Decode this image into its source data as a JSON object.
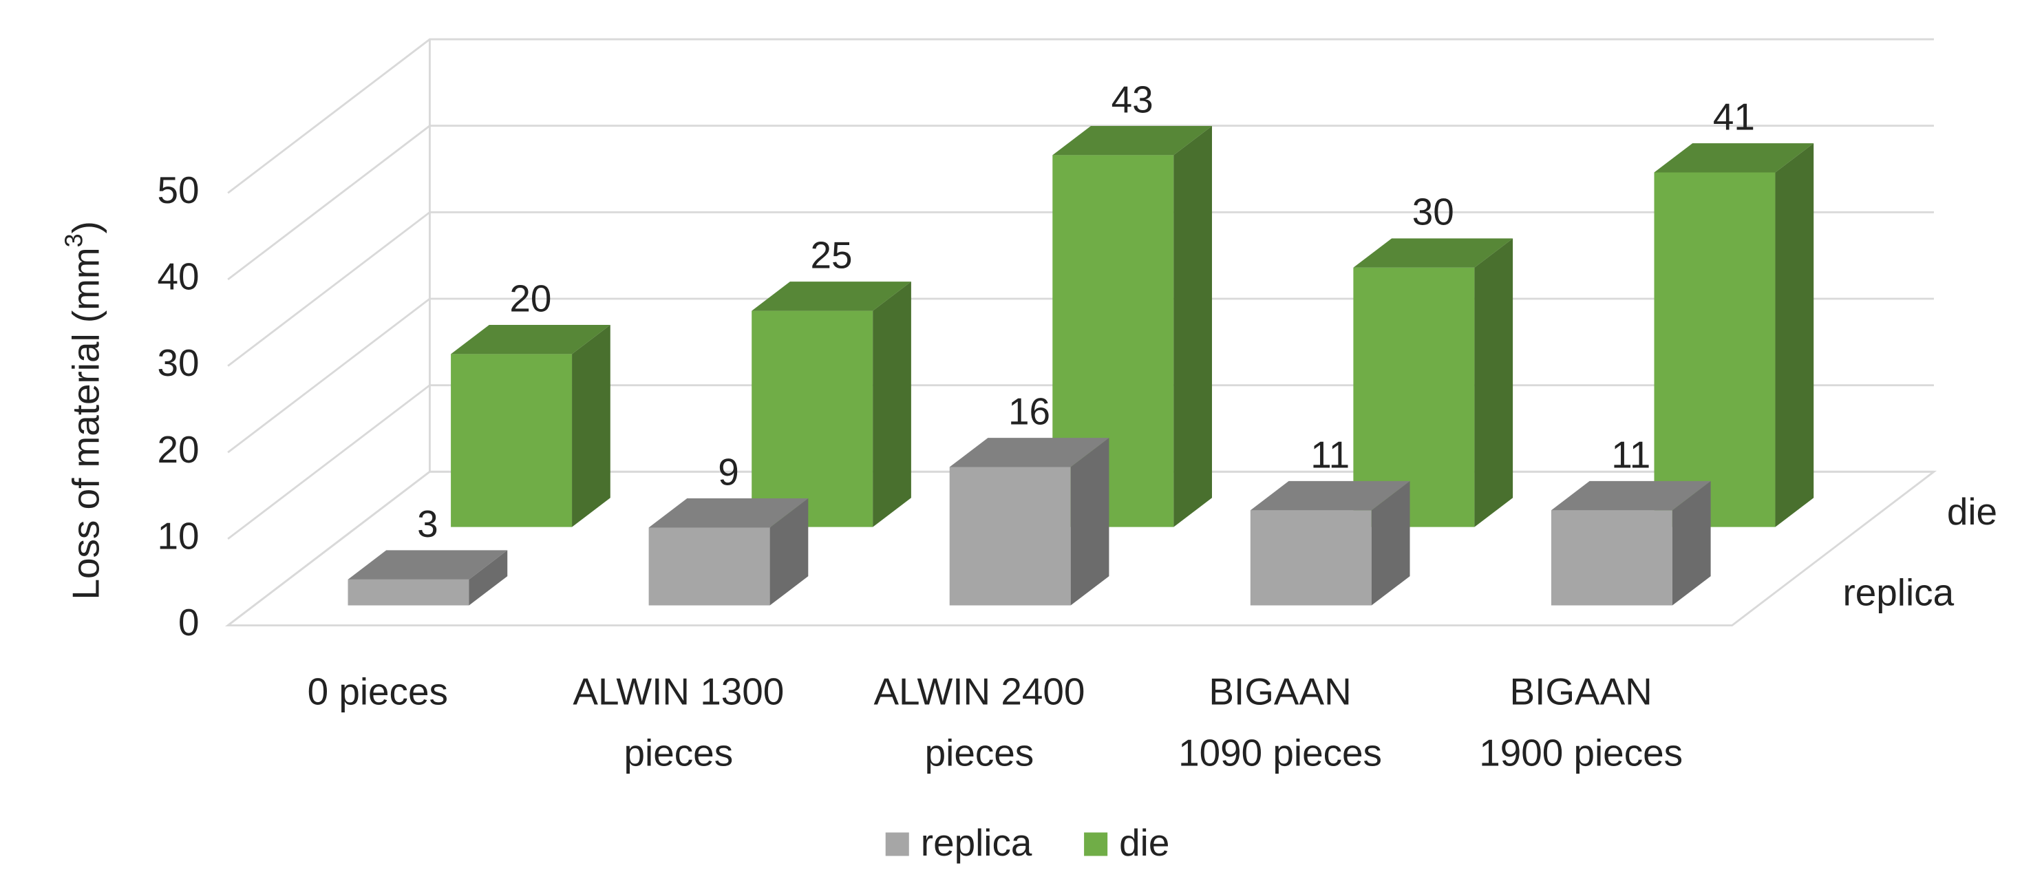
{
  "chart_data": {
    "type": "bar3d",
    "y_label": [
      "Loss of material (mm",
      "3",
      ")"
    ],
    "categories": [
      [
        "0 pieces"
      ],
      [
        "ALWIN  1300",
        "pieces"
      ],
      [
        "ALWIN  2400",
        "pieces"
      ],
      [
        "BIGAAN",
        "1090  pieces"
      ],
      [
        "BIGAAN",
        "1900   pieces"
      ]
    ],
    "series": [
      {
        "name": "replica",
        "color": "#a6a6a6",
        "values": [
          3,
          9,
          16,
          11,
          11
        ]
      },
      {
        "name": "die",
        "color": "#70ad47",
        "values": [
          20,
          25,
          43,
          30,
          41
        ]
      }
    ],
    "ylim": [
      0,
      50
    ],
    "yticks": [
      0,
      10,
      20,
      30,
      40,
      50
    ],
    "grid": true,
    "legend": "bottom"
  }
}
